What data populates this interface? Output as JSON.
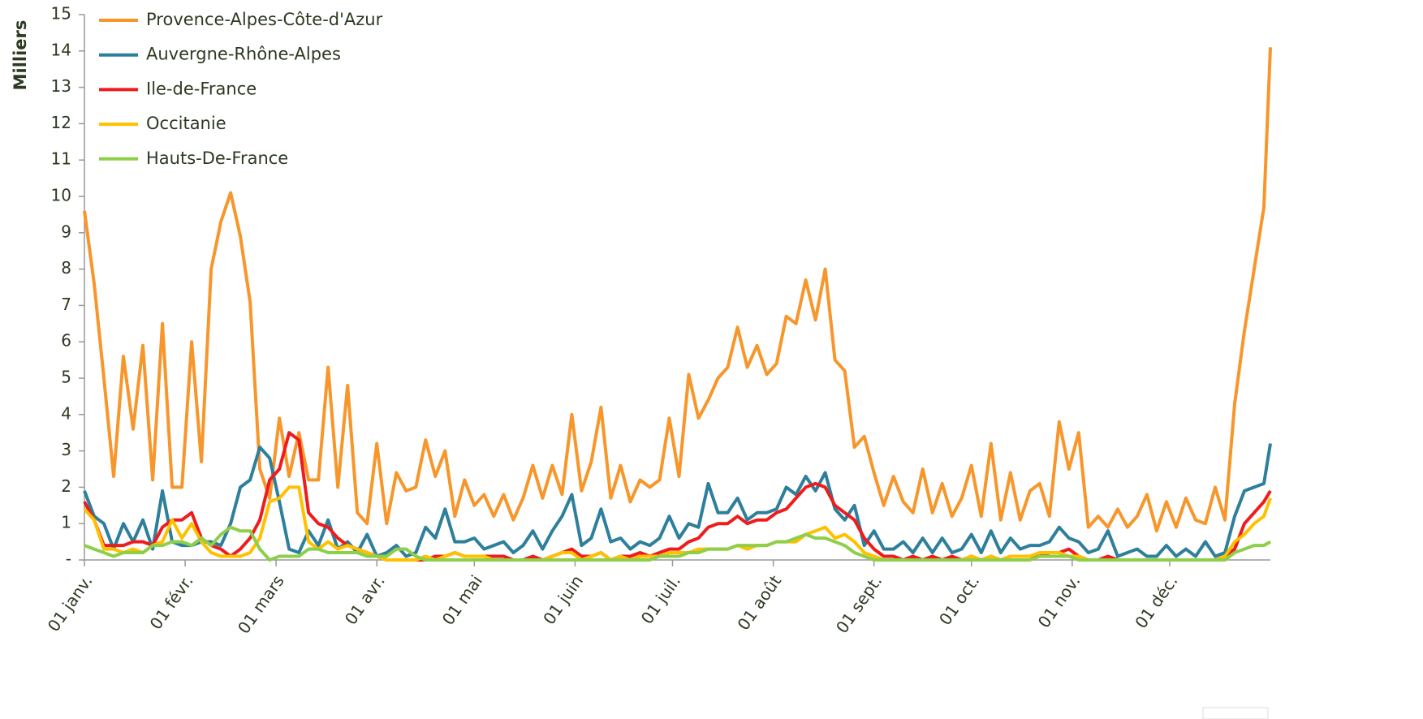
{
  "chart_data": {
    "type": "line",
    "y_label": "Milliers",
    "legend": "upper left",
    "xlim": [
      0,
      365
    ],
    "xticks": [
      {
        "value": 0,
        "label": "01 janv."
      },
      {
        "value": 31,
        "label": "01 févr."
      },
      {
        "value": 59,
        "label": "01 mars"
      },
      {
        "value": 90,
        "label": "01 avr."
      },
      {
        "value": 120,
        "label": "01 mai"
      },
      {
        "value": 151,
        "label": "01 juin"
      },
      {
        "value": 181,
        "label": "01 juil."
      },
      {
        "value": 212,
        "label": "01 août"
      },
      {
        "value": 243,
        "label": "01 sept."
      },
      {
        "value": 273,
        "label": "01 oct."
      },
      {
        "value": 304,
        "label": "01 nov."
      },
      {
        "value": 334,
        "label": "01 déc."
      }
    ],
    "ylim": [
      0,
      15
    ],
    "yticks": [
      {
        "value": 0,
        "label": "-"
      },
      1,
      2,
      3,
      4,
      5,
      6,
      7,
      8,
      9,
      10,
      11,
      12,
      13,
      14,
      15
    ],
    "x": [
      0,
      3,
      6,
      9,
      12,
      15,
      18,
      21,
      24,
      27,
      30,
      33,
      36,
      39,
      42,
      45,
      48,
      51,
      54,
      57,
      60,
      63,
      66,
      69,
      72,
      75,
      78,
      81,
      84,
      87,
      90,
      93,
      96,
      99,
      102,
      105,
      108,
      111,
      114,
      117,
      120,
      123,
      126,
      129,
      132,
      135,
      138,
      141,
      144,
      147,
      150,
      153,
      156,
      159,
      162,
      165,
      168,
      171,
      174,
      177,
      180,
      183,
      186,
      189,
      192,
      195,
      198,
      201,
      204,
      207,
      210,
      213,
      216,
      219,
      222,
      225,
      228,
      231,
      234,
      237,
      240,
      243,
      246,
      249,
      252,
      255,
      258,
      261,
      264,
      267,
      270,
      273,
      276,
      279,
      282,
      285,
      288,
      291,
      294,
      297,
      300,
      303,
      306,
      309,
      312,
      315,
      318,
      321,
      324,
      327,
      330,
      333,
      336,
      339,
      342,
      345,
      348,
      351,
      354,
      357,
      360,
      363,
      365
    ],
    "series": [
      {
        "name": "Provence-Alpes-Côte-d'Azur",
        "color": "#f7962b",
        "values": [
          9.6,
          7.6,
          5,
          2.3,
          5.6,
          3.6,
          5.9,
          2.2,
          6.5,
          2.0,
          2.0,
          6.0,
          2.7,
          8.0,
          9.3,
          10.1,
          8.9,
          7.1,
          2.5,
          1.7,
          3.9,
          2.3,
          3.5,
          2.2,
          2.2,
          5.3,
          2.0,
          4.8,
          1.3,
          1.0,
          3.2,
          1.0,
          2.4,
          1.9,
          2.0,
          3.3,
          2.3,
          3.0,
          1.2,
          2.2,
          1.5,
          1.8,
          1.2,
          1.8,
          1.1,
          1.7,
          2.6,
          1.7,
          2.6,
          1.8,
          4.0,
          1.9,
          2.7,
          4.2,
          1.7,
          2.6,
          1.6,
          2.2,
          2.0,
          2.2,
          3.9,
          2.3,
          5.1,
          3.9,
          4.4,
          5.0,
          5.3,
          6.4,
          5.3,
          5.9,
          5.1,
          5.4,
          6.7,
          6.5,
          7.7,
          6.6,
          8.0,
          5.5,
          5.2,
          3.1,
          3.4,
          2.4,
          1.5,
          2.3,
          1.6,
          1.3,
          2.5,
          1.3,
          2.1,
          1.2,
          1.7,
          2.6,
          1.2,
          3.2,
          1.1,
          2.4,
          1.1,
          1.9,
          2.1,
          1.2,
          3.8,
          2.5,
          3.5,
          0.9,
          1.2,
          0.9,
          1.4,
          0.9,
          1.2,
          1.8,
          0.8,
          1.6,
          0.9,
          1.7,
          1.1,
          1.0,
          2.0,
          1.1,
          4.3,
          6.3,
          8.0,
          9.7,
          14.1
        ]
      },
      {
        "name": "Auvergne-Rhône-Alpes",
        "color": "#2e7f9b",
        "values": [
          1.9,
          1.2,
          1.0,
          0.3,
          1.0,
          0.5,
          1.1,
          0.3,
          1.9,
          0.5,
          0.4,
          0.4,
          0.5,
          0.5,
          0.4,
          1.0,
          2.0,
          2.2,
          3.1,
          2.8,
          1.6,
          0.3,
          0.2,
          0.8,
          0.4,
          1.1,
          0.3,
          0.5,
          0.2,
          0.7,
          0.1,
          0.2,
          0.4,
          0.1,
          0.2,
          0.9,
          0.6,
          1.4,
          0.5,
          0.5,
          0.6,
          0.3,
          0.4,
          0.5,
          0.2,
          0.4,
          0.8,
          0.3,
          0.8,
          1.2,
          1.8,
          0.4,
          0.6,
          1.4,
          0.5,
          0.6,
          0.3,
          0.5,
          0.4,
          0.6,
          1.2,
          0.6,
          1.0,
          0.9,
          2.1,
          1.3,
          1.3,
          1.7,
          1.1,
          1.3,
          1.3,
          1.4,
          2.0,
          1.8,
          2.3,
          1.9,
          2.4,
          1.4,
          1.1,
          1.5,
          0.4,
          0.8,
          0.3,
          0.3,
          0.5,
          0.2,
          0.6,
          0.2,
          0.6,
          0.2,
          0.3,
          0.7,
          0.2,
          0.8,
          0.2,
          0.6,
          0.3,
          0.4,
          0.4,
          0.5,
          0.9,
          0.6,
          0.5,
          0.2,
          0.3,
          0.8,
          0.1,
          0.2,
          0.3,
          0.1,
          0.1,
          0.4,
          0.1,
          0.3,
          0.1,
          0.5,
          0.1,
          0.2,
          1.2,
          1.9,
          2.0,
          2.1,
          3.2
        ]
      },
      {
        "name": "Ile-de-France",
        "color": "#ee1c1c",
        "values": [
          1.6,
          1.1,
          0.4,
          0.4,
          0.4,
          0.5,
          0.5,
          0.4,
          0.9,
          1.1,
          1.1,
          1.3,
          0.6,
          0.4,
          0.3,
          0.1,
          0.3,
          0.6,
          1.1,
          2.2,
          2.5,
          3.5,
          3.3,
          1.3,
          1.0,
          0.9,
          0.6,
          0.4,
          0.3,
          0.2,
          0.1,
          0,
          0,
          0,
          0,
          0,
          0.1,
          0.1,
          0.2,
          0.1,
          0.1,
          0.1,
          0.1,
          0.1,
          0,
          0,
          0.1,
          0,
          0.1,
          0.2,
          0.3,
          0.1,
          0.1,
          0.2,
          0,
          0.1,
          0.1,
          0.2,
          0.1,
          0.2,
          0.3,
          0.3,
          0.5,
          0.6,
          0.9,
          1.0,
          1.0,
          1.2,
          1.0,
          1.1,
          1.1,
          1.3,
          1.4,
          1.7,
          2.0,
          2.1,
          2.0,
          1.5,
          1.3,
          1.1,
          0.6,
          0.3,
          0.1,
          0.1,
          0,
          0.1,
          0,
          0.1,
          0,
          0.1,
          0,
          0.1,
          0,
          0.1,
          0,
          0.1,
          0.1,
          0.1,
          0.1,
          0.2,
          0.2,
          0.3,
          0.1,
          0,
          0,
          0.1,
          0,
          0,
          0,
          0,
          0,
          0,
          0,
          0,
          0,
          0,
          0,
          0.1,
          0.3,
          1.0,
          1.3,
          1.6,
          1.9
        ]
      },
      {
        "name": "Occitanie",
        "color": "#ffc000",
        "values": [
          1.4,
          1.1,
          0.3,
          0.3,
          0.2,
          0.3,
          0.2,
          0.4,
          0.5,
          1.1,
          0.6,
          1.0,
          0.5,
          0.2,
          0.1,
          0.1,
          0.1,
          0.2,
          0.6,
          1.6,
          1.7,
          2.0,
          2.0,
          0.5,
          0.3,
          0.5,
          0.3,
          0.4,
          0.3,
          0.2,
          0.1,
          0,
          0,
          0,
          0,
          0.1,
          0,
          0.1,
          0.2,
          0.1,
          0.1,
          0.1,
          0,
          0,
          0,
          0,
          0,
          0,
          0.1,
          0.2,
          0.2,
          0,
          0.1,
          0.2,
          0,
          0.1,
          0,
          0.1,
          0.1,
          0.1,
          0.2,
          0.2,
          0.2,
          0.3,
          0.3,
          0.3,
          0.3,
          0.4,
          0.3,
          0.4,
          0.4,
          0.5,
          0.5,
          0.5,
          0.7,
          0.8,
          0.9,
          0.6,
          0.7,
          0.5,
          0.2,
          0.1,
          0,
          0,
          0,
          0,
          0,
          0,
          0,
          0,
          0,
          0.1,
          0,
          0.1,
          0,
          0.1,
          0.1,
          0.1,
          0.2,
          0.2,
          0.2,
          0.1,
          0.1,
          0,
          0,
          0,
          0,
          0,
          0,
          0,
          0,
          0,
          0,
          0,
          0,
          0,
          0,
          0.1,
          0.5,
          0.7,
          1.0,
          1.2,
          1.7
        ]
      },
      {
        "name": "Hauts-De-France",
        "color": "#8ecf4a",
        "values": [
          0.4,
          0.3,
          0.2,
          0.1,
          0.2,
          0.2,
          0.2,
          0.4,
          0.4,
          0.5,
          0.5,
          0.4,
          0.6,
          0.4,
          0.7,
          0.9,
          0.8,
          0.8,
          0.3,
          0,
          0.1,
          0.1,
          0.1,
          0.3,
          0.3,
          0.2,
          0.2,
          0.2,
          0.2,
          0.1,
          0.1,
          0.1,
          0.3,
          0.3,
          0.1,
          0,
          0,
          0,
          0,
          0,
          0,
          0,
          0,
          0,
          0,
          0,
          0,
          0,
          0,
          0,
          0,
          0,
          0,
          0,
          0,
          0,
          0,
          0,
          0,
          0.1,
          0.1,
          0.1,
          0.2,
          0.2,
          0.3,
          0.3,
          0.3,
          0.4,
          0.4,
          0.4,
          0.4,
          0.5,
          0.5,
          0.6,
          0.7,
          0.6,
          0.6,
          0.5,
          0.4,
          0.2,
          0.1,
          0,
          0,
          0,
          0,
          0,
          0,
          0,
          0,
          0,
          0,
          0,
          0,
          0,
          0,
          0,
          0,
          0,
          0.1,
          0.1,
          0.1,
          0.1,
          0,
          0,
          0,
          0,
          0,
          0,
          0,
          0,
          0,
          0,
          0,
          0,
          0,
          0,
          0,
          0,
          0.2,
          0.3,
          0.4,
          0.4,
          0.5
        ]
      }
    ]
  }
}
